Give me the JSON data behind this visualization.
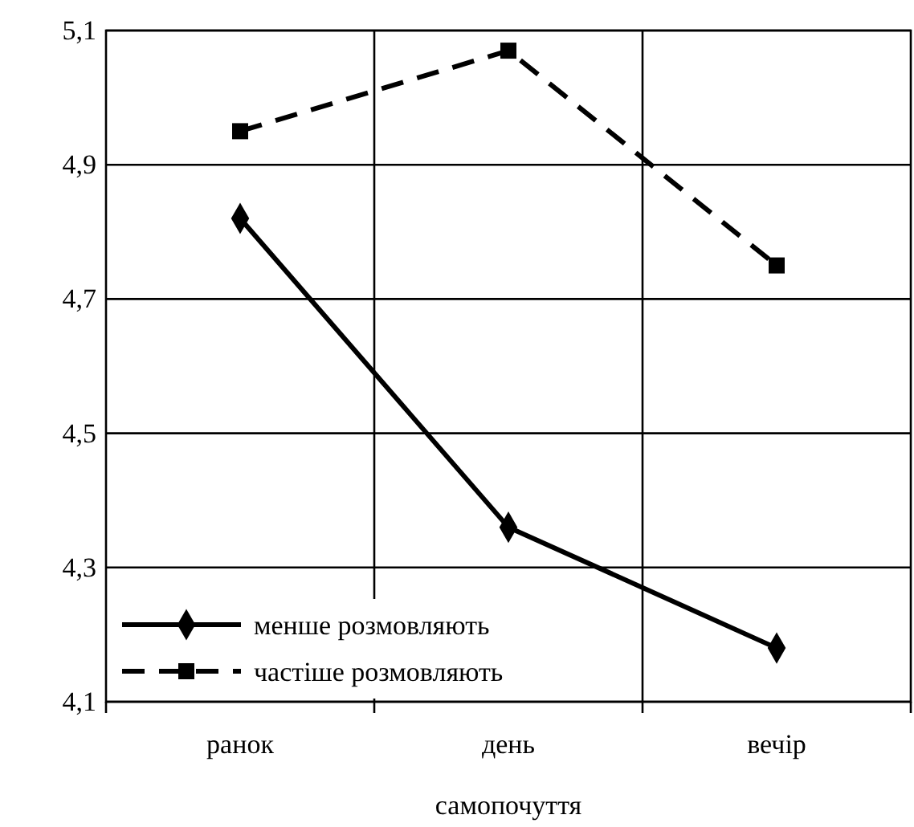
{
  "chart_data": {
    "type": "line",
    "xlabel": "самопочуття",
    "categories": [
      "ранок",
      "день",
      "вечір"
    ],
    "series": [
      {
        "name": "менше розмовляють",
        "color": "#000000",
        "values": [
          4.82,
          4.36,
          4.18
        ],
        "marker": "diamond",
        "line_style": "solid"
      },
      {
        "name": "частіше розмовляють",
        "color": "#000000",
        "values": [
          4.95,
          5.07,
          4.75
        ],
        "marker": "square",
        "line_style": "dashed"
      }
    ],
    "ylim": [
      4.1,
      5.1
    ],
    "yticks": [
      {
        "value": 4.1,
        "label": "4,1"
      },
      {
        "value": 4.3,
        "label": "4,3"
      },
      {
        "value": 4.5,
        "label": "4,5"
      },
      {
        "value": 4.7,
        "label": "4,7"
      },
      {
        "value": 4.9,
        "label": "4,9"
      },
      {
        "value": 5.1,
        "label": "5,1"
      }
    ],
    "grid": true,
    "legend": "bottom left"
  }
}
